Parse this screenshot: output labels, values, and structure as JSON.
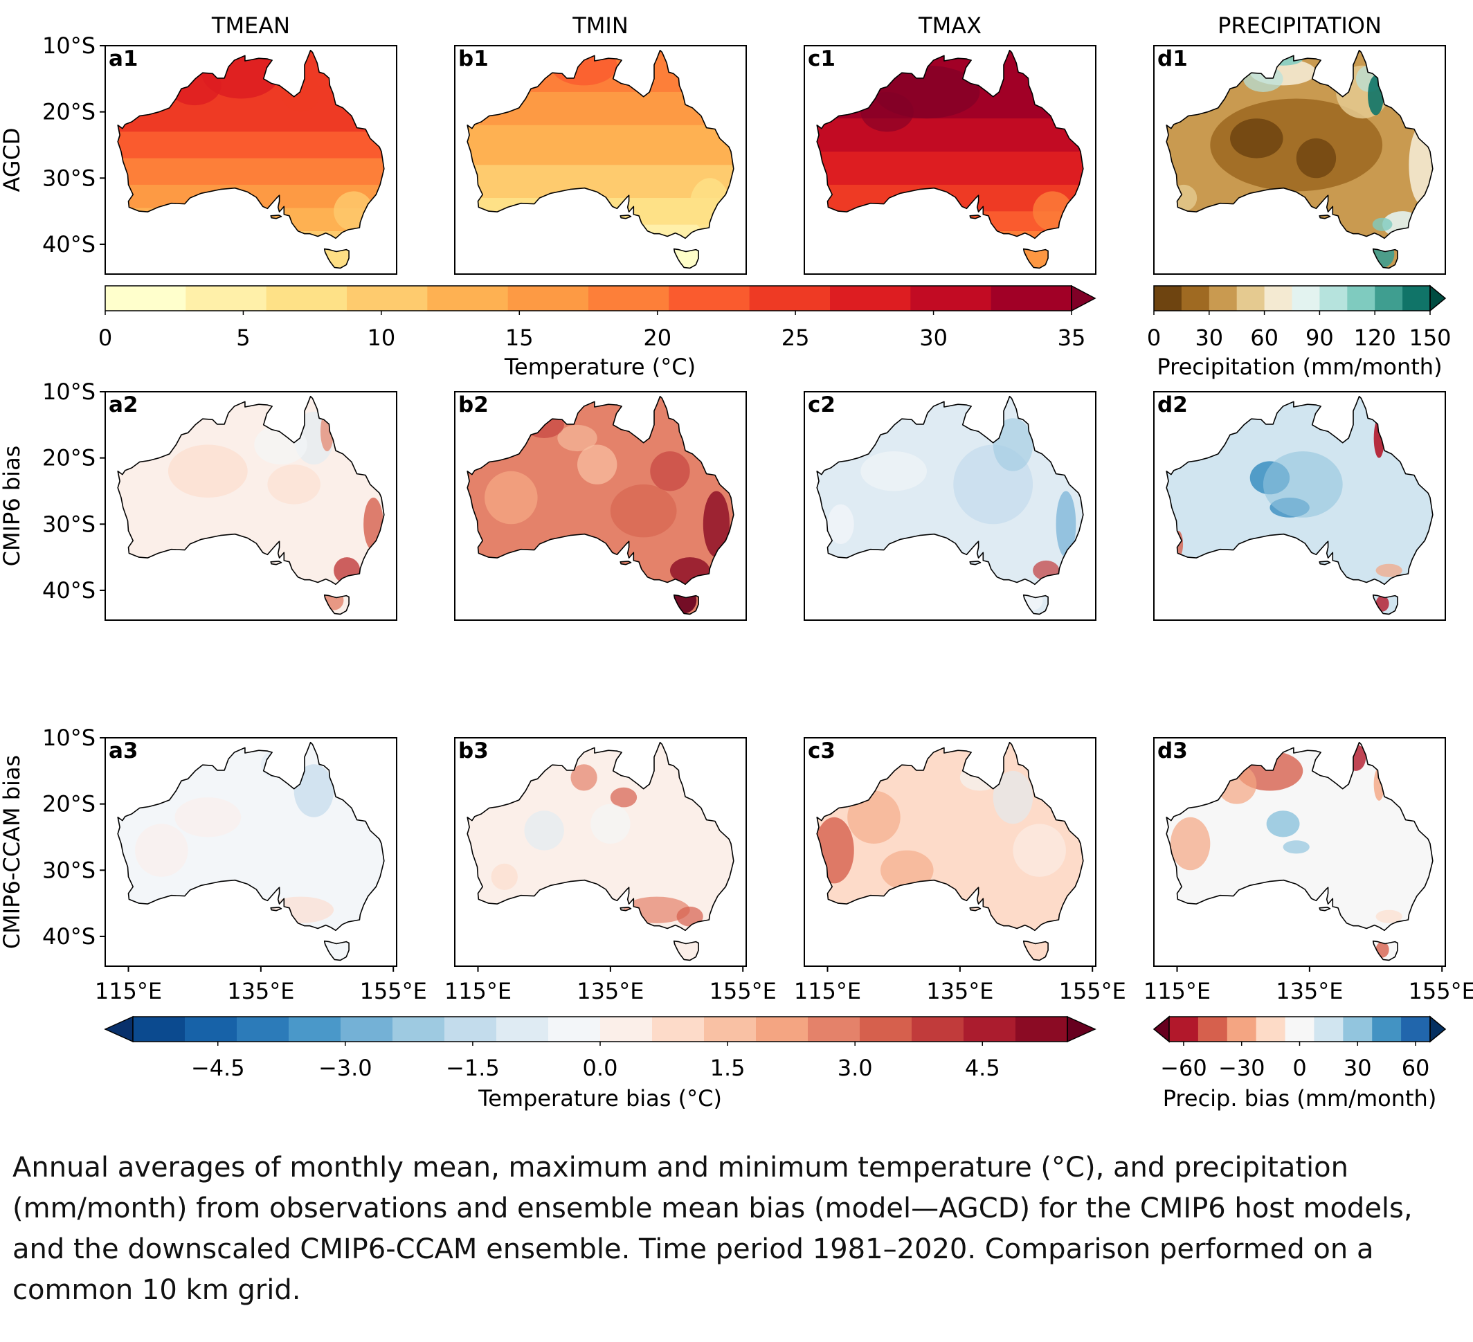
{
  "chart_data": {
    "type": "heatmap",
    "title": "",
    "column_titles": [
      "TMEAN",
      "TMIN",
      "TMAX",
      "PRECIPITATION"
    ],
    "row_labels": [
      "AGCD",
      "CMIP6 bias",
      "CMIP6-CCAM bias"
    ],
    "panel_labels": [
      [
        "a1",
        "b1",
        "c1",
        "d1"
      ],
      [
        "a2",
        "b2",
        "c2",
        "d2"
      ],
      [
        "a3",
        "b3",
        "c3",
        "d3"
      ]
    ],
    "lat_ticks": [
      "10°S",
      "20°S",
      "30°S",
      "40°S"
    ],
    "lat_values": [
      -10,
      -20,
      -30,
      -40
    ],
    "lon_ticks": [
      "115°E",
      "135°E",
      "155°E"
    ],
    "lon_values": [
      115,
      135,
      155
    ],
    "xlim": [
      111.5,
      155.5
    ],
    "ylim": [
      -44.5,
      -10
    ],
    "grid": false,
    "colorbars": {
      "temperature": {
        "label": "Temperature (°C)",
        "ticks": [
          "0",
          "5",
          "10",
          "15",
          "20",
          "25",
          "30",
          "35"
        ],
        "tick_values": [
          0,
          5,
          10,
          15,
          20,
          25,
          30,
          35
        ],
        "range": [
          0,
          35
        ],
        "extend": "max",
        "colors": [
          "#ffffcc",
          "#fff0a9",
          "#fee187",
          "#fecb6e",
          "#feb152",
          "#fd9a44",
          "#fd7f39",
          "#fa5b2e",
          "#ee3a24",
          "#dd1d21",
          "#c20b23",
          "#a10026",
          "#800026"
        ]
      },
      "precipitation": {
        "label": "Precipitation (mm/month)",
        "ticks": [
          "0",
          "30",
          "60",
          "90",
          "120",
          "150"
        ],
        "tick_values": [
          0,
          30,
          60,
          90,
          120,
          150
        ],
        "range": [
          0,
          150
        ],
        "extend": "max",
        "colors": [
          "#6e4410",
          "#9f6a22",
          "#c99a50",
          "#e5ca90",
          "#f4ead2",
          "#e3f3f0",
          "#b6e3dd",
          "#7fcbbf",
          "#3f9e90",
          "#107468",
          "#004c41"
        ]
      },
      "temperature_bias": {
        "label": "Temperature bias (°C)",
        "ticks": [
          "−4.5",
          "−3.0",
          "−1.5",
          "0.0",
          "1.5",
          "3.0",
          "4.5"
        ],
        "tick_values": [
          -4.5,
          -3.0,
          -1.5,
          0.0,
          1.5,
          3.0,
          4.5
        ],
        "range": [
          -5.5,
          5.5
        ],
        "extend": "both",
        "colors": [
          "#08306b",
          "#0b4a8f",
          "#1762a8",
          "#2c7bb9",
          "#4a98c9",
          "#74b1d6",
          "#9ecae1",
          "#c3dcec",
          "#dfebf3",
          "#f3f6f9",
          "#fbefe9",
          "#fddbc9",
          "#f9c1a4",
          "#f4a582",
          "#e4826a",
          "#d6604d",
          "#c13b3b",
          "#ab1c2e",
          "#8b0b24",
          "#67001f"
        ]
      },
      "precip_bias": {
        "label": "Precip. bias (mm/month)",
        "ticks": [
          "−60",
          "−30",
          "0",
          "30",
          "60"
        ],
        "tick_values": [
          -60,
          -30,
          0,
          30,
          60
        ],
        "range": [
          -67.5,
          67.5
        ],
        "extend": "both",
        "colors": [
          "#67001f",
          "#b2182b",
          "#d6604d",
          "#f4a582",
          "#fddbc7",
          "#f7f7f7",
          "#d1e5f0",
          "#92c5de",
          "#4393c3",
          "#2166ac",
          "#053061"
        ]
      }
    },
    "panel_fields": {
      "a1": "warm-north-gradient",
      "b1": "mild-north-gradient",
      "c1": "hot-north-gradient",
      "d1": "dry-interior-wet-coast",
      "a2": "slight-warm-bias",
      "b2": "strong-warm-bias",
      "c2": "cool-bias",
      "d2": "dry-interior-bias",
      "a3": "near-zero-bias",
      "b3": "slight-mixed-bias",
      "c3": "warm-west-bias",
      "d3": "warm-north-dry-bias"
    }
  },
  "caption": "Annual averages of monthly mean, maximum and minimum temperature (°C), and precipitation (mm/month) from observations and ensemble mean bias (model—AGCD) for the CMIP6 host models, and the downscaled CMIP6-CCAM ensemble. Time period 1981–2020. Comparison performed on a common 10 km grid."
}
